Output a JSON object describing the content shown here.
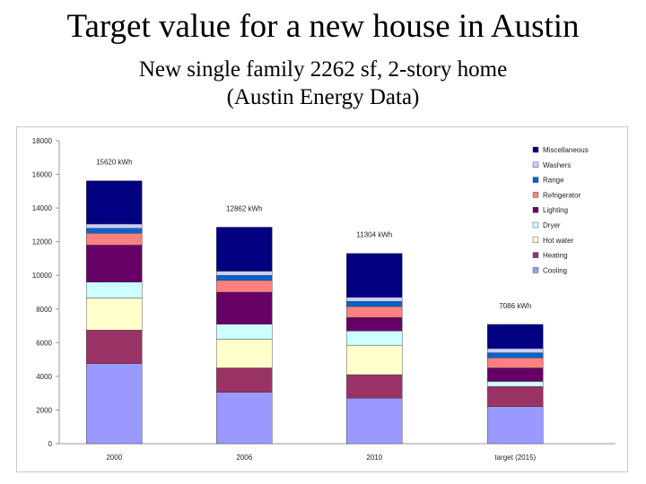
{
  "slide": {
    "title": "Target value for a new house in Austin",
    "subtitle_line1": "New single family 2262 sf, 2-story  home",
    "subtitle_line2": "(Austin Energy Data)"
  },
  "chart_data": {
    "type": "stacked-bar",
    "categories": [
      "2000",
      "2006",
      "2010",
      "target (2015)"
    ],
    "ylim": [
      0,
      18000
    ],
    "yticks": [
      0,
      2000,
      4000,
      6000,
      8000,
      10000,
      12000,
      14000,
      16000,
      18000
    ],
    "grid": false,
    "legend_position": "top-right",
    "totals_labels": [
      "15620 kWh",
      "12862 kWh",
      "11304 kWh",
      "7086 kWh"
    ],
    "series": [
      {
        "name": "Cooling",
        "color": "#9999ff",
        "values": [
          4750,
          3050,
          2700,
          2200
        ]
      },
      {
        "name": "Heating",
        "color": "#993366",
        "values": [
          2000,
          1450,
          1400,
          1200
        ]
      },
      {
        "name": "Hot water",
        "color": "#ffffcc",
        "values": [
          1900,
          1700,
          1750,
          0
        ]
      },
      {
        "name": "Dryer",
        "color": "#ccffff",
        "values": [
          950,
          900,
          850,
          300
        ]
      },
      {
        "name": "Lighting",
        "color": "#660066",
        "values": [
          2200,
          1900,
          800,
          800
        ]
      },
      {
        "name": "Refrigerator",
        "color": "#ff8080",
        "values": [
          700,
          700,
          650,
          600
        ]
      },
      {
        "name": "Range",
        "color": "#0066cc",
        "values": [
          300,
          300,
          300,
          300
        ]
      },
      {
        "name": "Washers",
        "color": "#ccccff",
        "values": [
          250,
          250,
          250,
          250
        ]
      },
      {
        "name": "Miscellaneous",
        "color": "#000080",
        "values": [
          2570,
          2612,
          2604,
          1436
        ]
      }
    ]
  }
}
